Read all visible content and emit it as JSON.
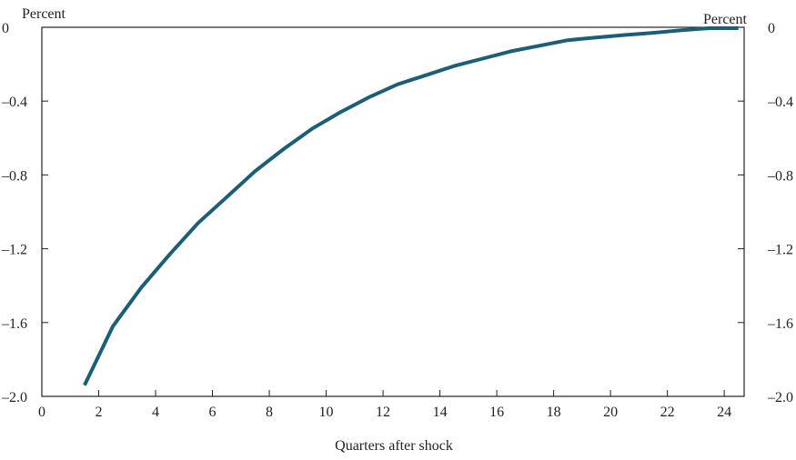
{
  "chart_data": {
    "type": "line",
    "xlabel": "Quarters after shock",
    "ylabel_left": "Percent",
    "ylabel_right": "Percent",
    "xlim": [
      0,
      24.7
    ],
    "ylim": [
      -2.0,
      0
    ],
    "x_ticks": [
      0,
      2,
      4,
      6,
      8,
      10,
      12,
      14,
      16,
      18,
      20,
      22,
      24
    ],
    "y_ticks": [
      0,
      -0.4,
      -0.8,
      -1.2,
      -1.6,
      -2.0
    ],
    "y_tick_labels": [
      "0",
      "–0.4",
      "–0.8",
      "–1.2",
      "–1.6",
      "–2.0"
    ],
    "grid": false,
    "line_color": "#1b5e78",
    "series": [
      {
        "x": [
          1.5,
          2.5,
          3.5,
          4.5,
          5.5,
          6.5,
          7.5,
          8.5,
          9.5,
          10.5,
          11.5,
          12.5,
          13.5,
          14.5,
          15.5,
          16.5,
          17.5,
          18.5,
          19.5,
          20.5,
          21.5,
          22.5,
          23.5,
          24.5
        ],
        "y": [
          -1.94,
          -1.62,
          -1.41,
          -1.23,
          -1.06,
          -0.92,
          -0.78,
          -0.66,
          -0.55,
          -0.46,
          -0.38,
          -0.31,
          -0.26,
          -0.21,
          -0.17,
          -0.13,
          -0.1,
          -0.07,
          -0.055,
          -0.042,
          -0.03,
          -0.016,
          -0.005,
          -0.005
        ]
      }
    ]
  }
}
